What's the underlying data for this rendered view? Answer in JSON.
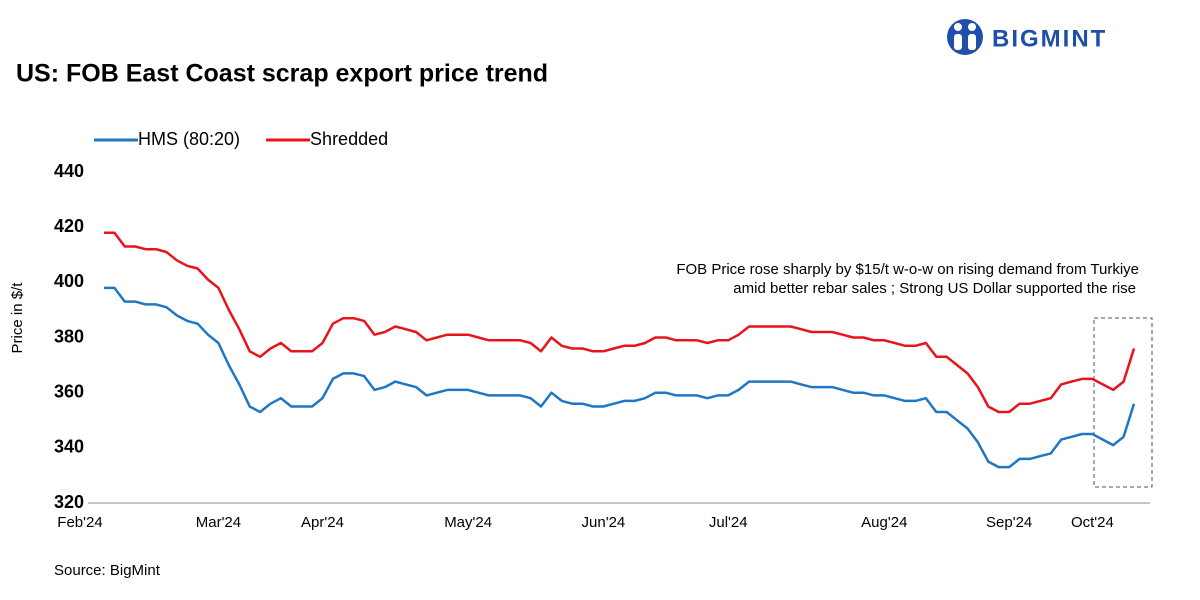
{
  "logo": "BIGMINT",
  "chart_data": {
    "type": "line",
    "title": "US: FOB East Coast scrap export price trend",
    "ylabel": "Price in $/t",
    "source": "Source: BigMint",
    "annotation": [
      "FOB Price rose sharply by $15/t w-o-w on rising demand from Turkiye",
      "amid better rebar sales ; Strong US Dollar supported the rise"
    ],
    "ylim": [
      320,
      440
    ],
    "yticks": [
      320,
      340,
      360,
      380,
      400,
      420,
      440
    ],
    "grid": false,
    "legend": "top-left",
    "categories": [
      "Feb'24",
      null,
      null,
      null,
      null,
      null,
      null,
      null,
      null,
      null,
      null,
      "Mar'24",
      null,
      null,
      null,
      null,
      null,
      null,
      null,
      null,
      null,
      "Apr'24",
      null,
      null,
      null,
      null,
      null,
      null,
      null,
      null,
      null,
      null,
      null,
      null,
      null,
      "May'24",
      null,
      null,
      null,
      null,
      null,
      null,
      null,
      null,
      null,
      null,
      null,
      null,
      "Jun'24",
      null,
      null,
      null,
      null,
      null,
      null,
      null,
      null,
      null,
      null,
      null,
      "Jul'24",
      null,
      null,
      null,
      null,
      null,
      null,
      null,
      null,
      null,
      null,
      null,
      null,
      null,
      null,
      "Aug'24",
      null,
      null,
      null,
      null,
      null,
      null,
      null,
      null,
      null,
      null,
      null,
      "Sep'24",
      null,
      null,
      null,
      null,
      null,
      null,
      null,
      "Oct'24",
      null,
      null,
      null,
      null
    ],
    "series": [
      {
        "name": "HMS (80:20)",
        "color": "#1f77c4",
        "values": [
          398,
          398,
          393,
          393,
          392,
          392,
          391,
          388,
          386,
          385,
          381,
          378,
          370,
          363,
          355,
          353,
          356,
          358,
          355,
          355,
          355,
          358,
          365,
          367,
          367,
          366,
          361,
          362,
          364,
          363,
          362,
          359,
          360,
          361,
          361,
          361,
          360,
          359,
          359,
          359,
          359,
          358,
          355,
          360,
          357,
          356,
          356,
          355,
          355,
          356,
          357,
          357,
          358,
          360,
          360,
          359,
          359,
          359,
          358,
          359,
          359,
          361,
          364,
          364,
          364,
          364,
          364,
          363,
          362,
          362,
          362,
          361,
          360,
          360,
          359,
          359,
          358,
          357,
          357,
          358,
          353,
          353,
          350,
          347,
          342,
          335,
          333,
          333,
          336,
          336,
          337,
          338,
          343,
          344,
          345,
          345,
          343,
          341,
          344,
          356
        ]
      },
      {
        "name": "Shredded",
        "color": "#e8141b",
        "values": [
          418,
          418,
          413,
          413,
          412,
          412,
          411,
          408,
          406,
          405,
          401,
          398,
          390,
          383,
          375,
          373,
          376,
          378,
          375,
          375,
          375,
          378,
          385,
          387,
          387,
          386,
          381,
          382,
          384,
          383,
          382,
          379,
          380,
          381,
          381,
          381,
          380,
          379,
          379,
          379,
          379,
          378,
          375,
          380,
          377,
          376,
          376,
          375,
          375,
          376,
          377,
          377,
          378,
          380,
          380,
          379,
          379,
          379,
          378,
          379,
          379,
          381,
          384,
          384,
          384,
          384,
          384,
          383,
          382,
          382,
          382,
          381,
          380,
          380,
          379,
          379,
          378,
          377,
          377,
          378,
          373,
          373,
          370,
          367,
          362,
          355,
          353,
          353,
          356,
          356,
          357,
          358,
          363,
          364,
          365,
          365,
          363,
          361,
          364,
          376
        ]
      }
    ]
  }
}
